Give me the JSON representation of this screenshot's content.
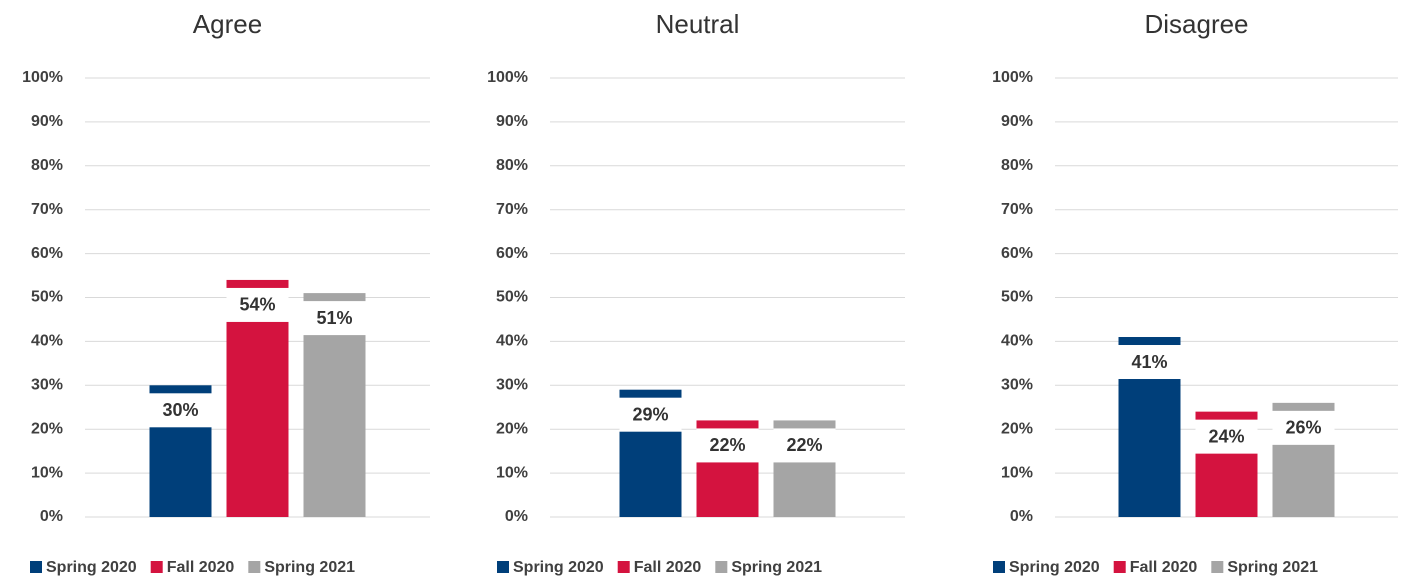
{
  "chart_data": [
    {
      "type": "bar",
      "title": "Agree",
      "categories": [
        null
      ],
      "series": [
        {
          "name": "Spring 2020",
          "color": "#003f7a",
          "values": [
            30
          ],
          "value_labels": [
            "30%"
          ]
        },
        {
          "name": "Fall 2020",
          "color": "#d4133f",
          "values": [
            54
          ],
          "value_labels": [
            "54%"
          ]
        },
        {
          "name": "Spring 2021",
          "color": "#a5a5a5",
          "values": [
            51
          ],
          "value_labels": [
            "51%"
          ]
        }
      ],
      "ylim": [
        0,
        100
      ],
      "yticks": [
        {
          "value": 0,
          "label": "0%"
        },
        {
          "value": 10,
          "label": "10%"
        },
        {
          "value": 20,
          "label": "20%"
        },
        {
          "value": 30,
          "label": "30%"
        },
        {
          "value": 40,
          "label": "40%"
        },
        {
          "value": 50,
          "label": "50%"
        },
        {
          "value": 60,
          "label": "60%"
        },
        {
          "value": 70,
          "label": "70%"
        },
        {
          "value": 80,
          "label": "80%"
        },
        {
          "value": 90,
          "label": "90%"
        },
        {
          "value": 100,
          "label": "100%"
        }
      ],
      "grid": true,
      "legend": "bottom"
    },
    {
      "type": "bar",
      "title": "Neutral",
      "categories": [
        null
      ],
      "series": [
        {
          "name": "Spring 2020",
          "color": "#003f7a",
          "values": [
            29
          ],
          "value_labels": [
            "29%"
          ]
        },
        {
          "name": "Fall 2020",
          "color": "#d4133f",
          "values": [
            22
          ],
          "value_labels": [
            "22%"
          ]
        },
        {
          "name": "Spring 2021",
          "color": "#a5a5a5",
          "values": [
            22
          ],
          "value_labels": [
            "22%"
          ]
        }
      ],
      "ylim": [
        0,
        100
      ],
      "yticks": [
        {
          "value": 0,
          "label": "0%"
        },
        {
          "value": 10,
          "label": "10%"
        },
        {
          "value": 20,
          "label": "20%"
        },
        {
          "value": 30,
          "label": "30%"
        },
        {
          "value": 40,
          "label": "40%"
        },
        {
          "value": 50,
          "label": "50%"
        },
        {
          "value": 60,
          "label": "60%"
        },
        {
          "value": 70,
          "label": "70%"
        },
        {
          "value": 80,
          "label": "80%"
        },
        {
          "value": 90,
          "label": "90%"
        },
        {
          "value": 100,
          "label": "100%"
        }
      ],
      "grid": true,
      "legend": "bottom"
    },
    {
      "type": "bar",
      "title": "Disagree",
      "categories": [
        null
      ],
      "series": [
        {
          "name": "Spring 2020",
          "color": "#003f7a",
          "values": [
            41
          ],
          "value_labels": [
            "41%"
          ]
        },
        {
          "name": "Fall 2020",
          "color": "#d4133f",
          "values": [
            24
          ],
          "value_labels": [
            "24%"
          ]
        },
        {
          "name": "Spring 2021",
          "color": "#a5a5a5",
          "values": [
            26
          ],
          "value_labels": [
            "26%"
          ]
        }
      ],
      "ylim": [
        0,
        100
      ],
      "yticks": [
        {
          "value": 0,
          "label": "0%"
        },
        {
          "value": 10,
          "label": "10%"
        },
        {
          "value": 20,
          "label": "20%"
        },
        {
          "value": 30,
          "label": "30%"
        },
        {
          "value": 40,
          "label": "40%"
        },
        {
          "value": 50,
          "label": "50%"
        },
        {
          "value": 60,
          "label": "60%"
        },
        {
          "value": 70,
          "label": "70%"
        },
        {
          "value": 80,
          "label": "80%"
        },
        {
          "value": 90,
          "label": "90%"
        },
        {
          "value": 100,
          "label": "100%"
        }
      ],
      "grid": true,
      "legend": "bottom"
    }
  ]
}
